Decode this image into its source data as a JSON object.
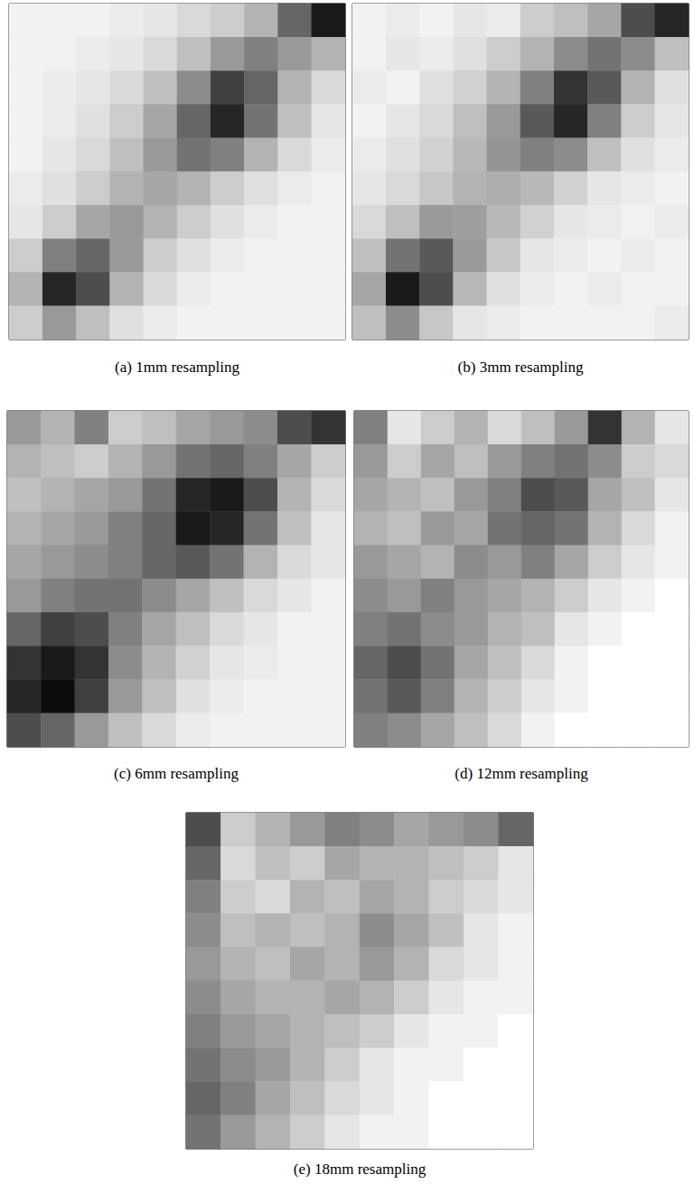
{
  "chart_data": [
    {
      "type": "heatmap",
      "title": "(a) 1mm resampling",
      "zlim": [
        0,
        100
      ],
      "tick_labels": false,
      "rows": [
        [
          5,
          5,
          5,
          8,
          10,
          15,
          20,
          30,
          60,
          90
        ],
        [
          5,
          5,
          8,
          10,
          15,
          25,
          40,
          50,
          40,
          30
        ],
        [
          5,
          8,
          10,
          15,
          25,
          45,
          75,
          60,
          30,
          15
        ],
        [
          5,
          8,
          12,
          20,
          35,
          60,
          85,
          55,
          25,
          10
        ],
        [
          5,
          10,
          15,
          25,
          40,
          55,
          50,
          30,
          15,
          8
        ],
        [
          8,
          12,
          20,
          30,
          35,
          30,
          20,
          12,
          8,
          5
        ],
        [
          10,
          20,
          35,
          40,
          30,
          20,
          12,
          8,
          5,
          5
        ],
        [
          20,
          50,
          60,
          40,
          20,
          12,
          8,
          5,
          5,
          5
        ],
        [
          30,
          85,
          70,
          30,
          15,
          8,
          5,
          5,
          5,
          5
        ],
        [
          20,
          40,
          25,
          12,
          8,
          5,
          5,
          5,
          5,
          5
        ]
      ]
    },
    {
      "type": "heatmap",
      "title": "(b) 3mm resampling",
      "zlim": [
        0,
        100
      ],
      "tick_labels": false,
      "rows": [
        [
          5,
          8,
          5,
          10,
          8,
          20,
          25,
          35,
          70,
          85
        ],
        [
          5,
          10,
          8,
          12,
          20,
          30,
          45,
          55,
          45,
          25
        ],
        [
          8,
          5,
          12,
          18,
          30,
          50,
          80,
          65,
          30,
          12
        ],
        [
          5,
          10,
          15,
          25,
          40,
          65,
          85,
          50,
          20,
          10
        ],
        [
          8,
          12,
          18,
          28,
          42,
          50,
          45,
          25,
          12,
          8
        ],
        [
          10,
          15,
          22,
          30,
          32,
          28,
          18,
          10,
          8,
          5
        ],
        [
          15,
          25,
          40,
          38,
          28,
          18,
          10,
          8,
          5,
          8
        ],
        [
          25,
          55,
          65,
          40,
          22,
          10,
          8,
          5,
          8,
          5
        ],
        [
          35,
          90,
          70,
          28,
          12,
          8,
          5,
          8,
          5,
          5
        ],
        [
          25,
          45,
          22,
          10,
          8,
          5,
          5,
          5,
          5,
          8
        ]
      ]
    },
    {
      "type": "heatmap",
      "title": "(c) 6mm resampling",
      "zlim": [
        0,
        100
      ],
      "tick_labels": false,
      "rows": [
        [
          40,
          30,
          50,
          20,
          25,
          35,
          40,
          45,
          70,
          80
        ],
        [
          30,
          25,
          20,
          30,
          40,
          55,
          60,
          50,
          35,
          20
        ],
        [
          25,
          30,
          35,
          40,
          55,
          85,
          90,
          70,
          30,
          15
        ],
        [
          30,
          35,
          40,
          50,
          60,
          90,
          85,
          55,
          25,
          10
        ],
        [
          35,
          40,
          45,
          50,
          60,
          65,
          55,
          30,
          15,
          10
        ],
        [
          40,
          50,
          55,
          55,
          45,
          35,
          25,
          15,
          10,
          5
        ],
        [
          60,
          75,
          70,
          50,
          35,
          25,
          15,
          10,
          5,
          5
        ],
        [
          80,
          90,
          80,
          45,
          30,
          18,
          10,
          8,
          5,
          5
        ],
        [
          85,
          95,
          75,
          40,
          25,
          12,
          8,
          5,
          5,
          5
        ],
        [
          70,
          60,
          40,
          25,
          15,
          8,
          5,
          5,
          5,
          5
        ]
      ]
    },
    {
      "type": "heatmap",
      "title": "(d) 12mm resampling",
      "zlim": [
        0,
        100
      ],
      "tick_labels": false,
      "rows": [
        [
          50,
          10,
          20,
          30,
          15,
          25,
          40,
          80,
          30,
          10
        ],
        [
          40,
          20,
          35,
          25,
          40,
          50,
          55,
          45,
          20,
          15
        ],
        [
          35,
          30,
          25,
          40,
          50,
          70,
          65,
          35,
          25,
          10
        ],
        [
          30,
          25,
          40,
          35,
          55,
          60,
          55,
          30,
          15,
          5
        ],
        [
          40,
          35,
          30,
          45,
          40,
          50,
          35,
          20,
          10,
          5
        ],
        [
          45,
          40,
          50,
          40,
          35,
          30,
          20,
          10,
          5,
          0
        ],
        [
          50,
          55,
          45,
          40,
          30,
          25,
          10,
          5,
          0,
          0
        ],
        [
          60,
          70,
          55,
          35,
          25,
          15,
          5,
          0,
          0,
          0
        ],
        [
          55,
          65,
          50,
          30,
          20,
          10,
          5,
          0,
          0,
          0
        ],
        [
          50,
          45,
          35,
          25,
          15,
          5,
          0,
          0,
          0,
          0
        ]
      ]
    },
    {
      "type": "heatmap",
      "title": "(e) 18mm resampling",
      "zlim": [
        0,
        100
      ],
      "tick_labels": false,
      "rows": [
        [
          70,
          20,
          30,
          40,
          50,
          45,
          35,
          40,
          45,
          60
        ],
        [
          60,
          15,
          25,
          20,
          35,
          30,
          30,
          25,
          20,
          10
        ],
        [
          50,
          20,
          15,
          30,
          25,
          35,
          30,
          20,
          15,
          10
        ],
        [
          45,
          25,
          30,
          25,
          30,
          45,
          35,
          25,
          10,
          5
        ],
        [
          40,
          30,
          25,
          35,
          30,
          40,
          30,
          15,
          10,
          5
        ],
        [
          45,
          35,
          30,
          30,
          35,
          30,
          20,
          10,
          5,
          5
        ],
        [
          50,
          40,
          35,
          30,
          25,
          20,
          10,
          5,
          5,
          0
        ],
        [
          55,
          45,
          40,
          30,
          20,
          10,
          5,
          5,
          0,
          0
        ],
        [
          60,
          50,
          35,
          25,
          15,
          10,
          5,
          0,
          0,
          0
        ],
        [
          55,
          40,
          30,
          20,
          10,
          5,
          5,
          0,
          0,
          0
        ]
      ]
    }
  ]
}
